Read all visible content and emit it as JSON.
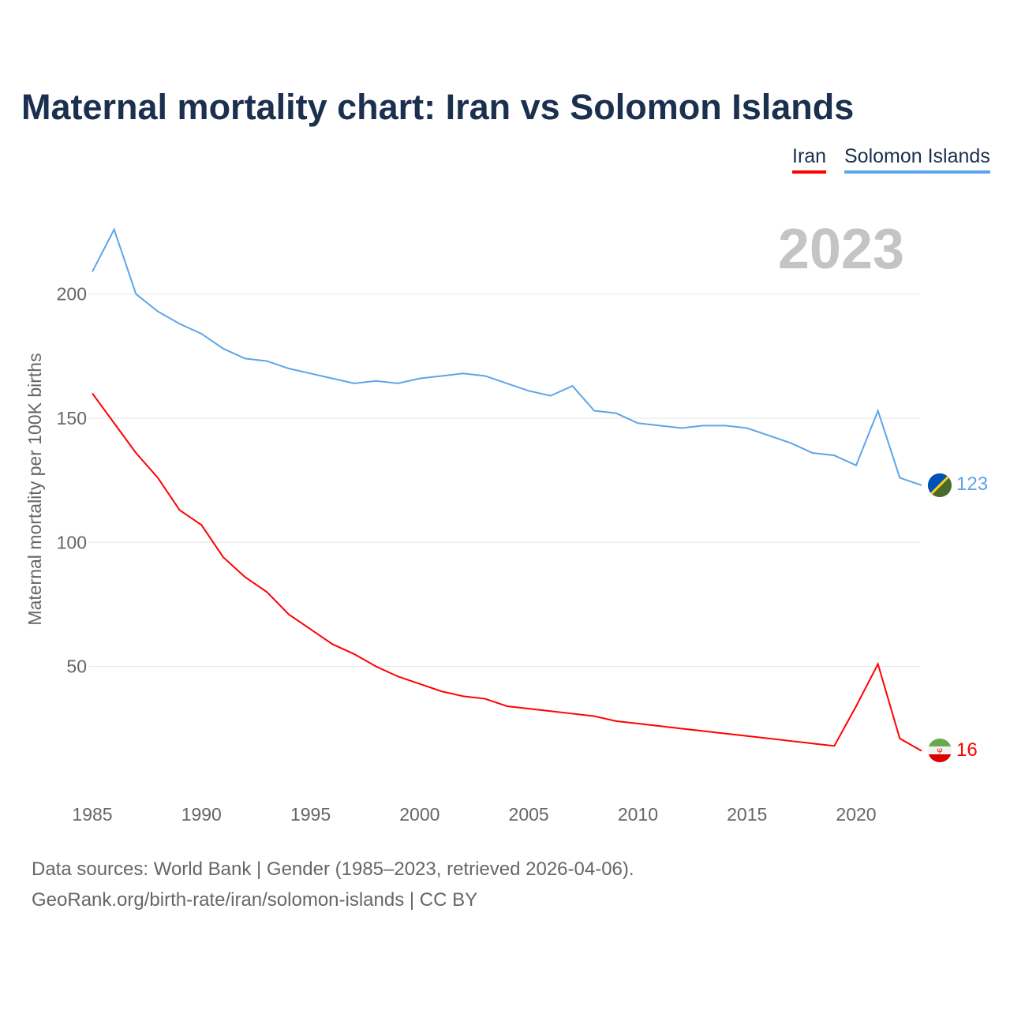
{
  "chart_data": {
    "type": "line",
    "title": "Maternal mortality chart: Iran vs Solomon Islands",
    "ylabel": "Maternal mortality per 100K births",
    "xlabel": "",
    "year_label": "2023",
    "ylim": [
      0,
      230
    ],
    "xlim": [
      1985,
      2023
    ],
    "yticks": [
      50,
      100,
      150,
      200
    ],
    "xticks": [
      1985,
      1990,
      1995,
      2000,
      2005,
      2010,
      2015,
      2020
    ],
    "grid": true,
    "legend_position": "top-right",
    "x": [
      1985,
      1986,
      1987,
      1988,
      1989,
      1990,
      1991,
      1992,
      1993,
      1994,
      1995,
      1996,
      1997,
      1998,
      1999,
      2000,
      2001,
      2002,
      2003,
      2004,
      2005,
      2006,
      2007,
      2008,
      2009,
      2010,
      2011,
      2012,
      2013,
      2014,
      2015,
      2016,
      2017,
      2018,
      2019,
      2020,
      2021,
      2022,
      2023
    ],
    "series": [
      {
        "name": "Iran",
        "color": "#ff0000",
        "end_label": "16",
        "values": [
          160,
          148,
          136,
          126,
          113,
          107,
          94,
          86,
          80,
          71,
          65,
          59,
          55,
          50,
          46,
          43,
          40,
          38,
          37,
          34,
          33,
          32,
          31,
          30,
          28,
          27,
          26,
          25,
          24,
          23,
          22,
          21,
          20,
          19,
          18,
          34,
          51,
          21,
          16
        ]
      },
      {
        "name": "Solomon Islands",
        "color": "#5ea5e8",
        "end_label": "123",
        "values": [
          209,
          226,
          200,
          193,
          188,
          184,
          178,
          174,
          173,
          170,
          168,
          166,
          164,
          165,
          164,
          166,
          167,
          168,
          167,
          164,
          161,
          159,
          163,
          153,
          152,
          148,
          147,
          146,
          147,
          147,
          146,
          143,
          140,
          136,
          135,
          131,
          153,
          126,
          123
        ]
      }
    ]
  },
  "footer": {
    "line1": "Data sources: World Bank | Gender (1985–2023, retrieved 2026-04-06).",
    "line2": "GeoRank.org/birth-rate/iran/solomon-islands | CC BY"
  }
}
